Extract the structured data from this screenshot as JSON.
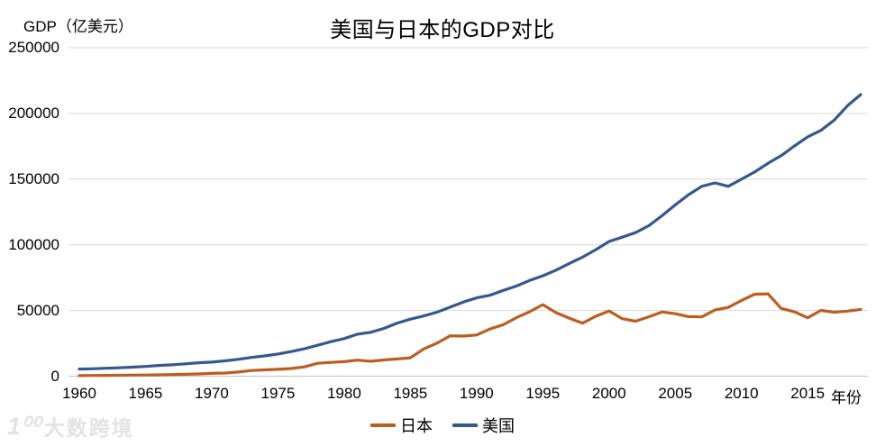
{
  "watermark": {
    "logo": "1⁰⁰",
    "text": "大数跨境"
  },
  "chart_data": {
    "type": "line",
    "title": "美国与日本的GDP对比",
    "ylabel": "GDP（亿美元）",
    "xlabel": "年份",
    "x_start": 1960,
    "x_end": 2019,
    "ylim": [
      0,
      250000
    ],
    "y_ticks": [
      250000,
      200000,
      150000,
      100000,
      50000,
      0
    ],
    "x_ticks": [
      1960,
      1965,
      1970,
      1975,
      1980,
      1985,
      1990,
      1995,
      2000,
      2005,
      2010,
      2015
    ],
    "grid": "horizontal",
    "legend_position": "bottom",
    "colors": {
      "japan": "#BC5E20",
      "usa": "#35588E",
      "gridline": "#D9D9D9",
      "axis_line": "#C0C0C0",
      "text": "#000000",
      "watermark": "#E3E3E3"
    },
    "series": [
      {
        "name": "日本",
        "color": "#BC5E20",
        "values": [
          443,
          535,
          609,
          695,
          818,
          909,
          1056,
          1237,
          1466,
          1722,
          2127,
          2402,
          3181,
          4321,
          4798,
          5215,
          5800,
          7070,
          9820,
          10472,
          11053,
          12189,
          11301,
          12344,
          13086,
          13989,
          20709,
          25133,
          30717,
          30545,
          31330,
          35844,
          39088,
          44543,
          49070,
          54490,
          48337,
          44157,
          40330,
          45624,
          49683,
          43745,
          41828,
          45193,
          48934,
          47552,
          45304,
          45152,
          50378,
          52312,
          57590,
          62334,
          62721,
          51557,
          48966,
          44445,
          50037,
          48668,
          49545,
          50818
        ]
      },
      {
        "name": "美国",
        "color": "#35588E",
        "values": [
          5433,
          5633,
          6051,
          6386,
          6858,
          7437,
          8150,
          8617,
          9425,
          10199,
          10730,
          11648,
          12793,
          14257,
          15451,
          16849,
          18738,
          20819,
          23517,
          26272,
          28572,
          31988,
          33433,
          36380,
          40409,
          43390,
          45797,
          48703,
          52525,
          56414,
          59632,
          61583,
          65220,
          68585,
          72872,
          76397,
          80731,
          85774,
          90626,
          96310,
          102523,
          105818,
          109293,
          114563,
          122137,
          130366,
          138145,
          144519,
          147130,
          144487,
          149921,
          155426,
          161970,
          167848,
          175217,
          182193,
          187072,
          194854,
          205802,
          214332
        ]
      }
    ]
  }
}
